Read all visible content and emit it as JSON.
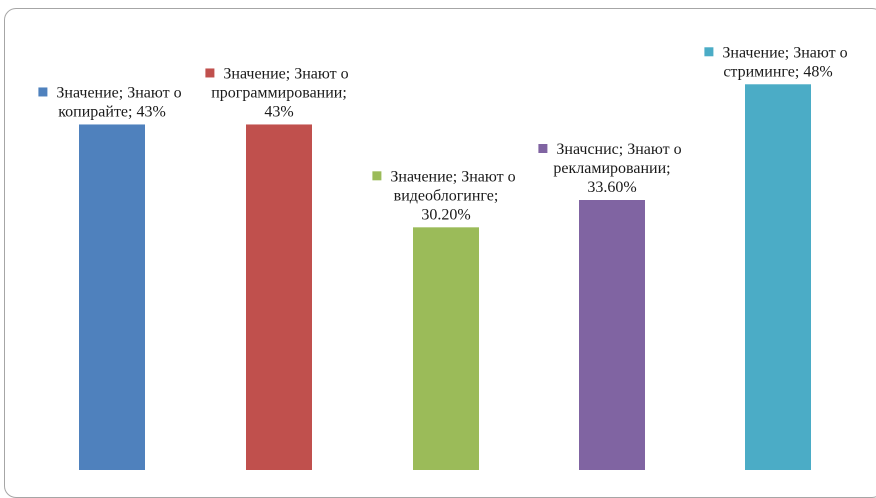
{
  "chart_data": {
    "type": "bar",
    "categories": [
      "Знают о копирайте",
      "Знают о программировании",
      "Знают о видеоблогинге",
      "Знают о рекламировании",
      "Знают о стриминге"
    ],
    "values": [
      43,
      43,
      30.2,
      33.6,
      48
    ],
    "colors": [
      "#4f81bd",
      "#c0504d",
      "#9bbb59",
      "#8064a2",
      "#4bacc6"
    ],
    "data_labels": [
      [
        "Значение; Знают о",
        "копирайте; 43%"
      ],
      [
        "Значение; Знают о",
        "программировании;",
        "43%"
      ],
      [
        "Значение; Знают о",
        "видеоблогинге;",
        "30.20%"
      ],
      [
        "Значснис; Знают о",
        "рекламировании;",
        "33.60%"
      ],
      [
        "Значение; Знают о",
        "стриминге; 48%"
      ]
    ],
    "ylim": [
      0,
      56
    ],
    "grid": false,
    "legend": "none"
  }
}
